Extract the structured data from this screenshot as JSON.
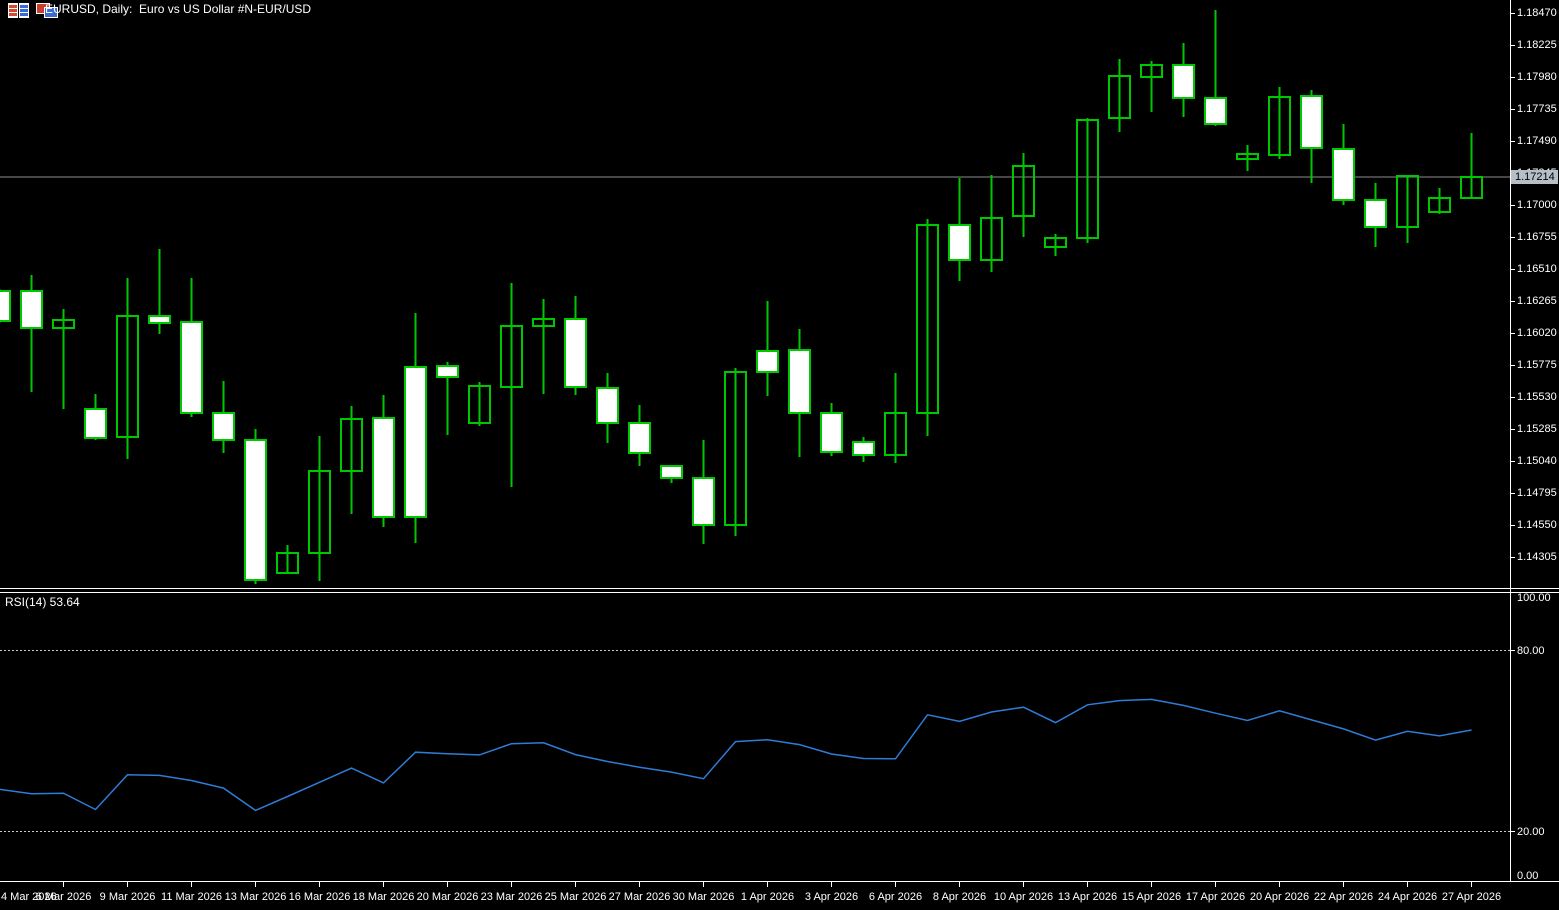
{
  "window": {
    "title": "EURUSD, Daily:  Euro vs US Dollar #N-EUR/USD",
    "icons": [
      "symbol-list-icon",
      "chart-window-icon"
    ]
  },
  "colors": {
    "background": "#000000",
    "candle_outline": "#00C800",
    "bear_body_fill": "#FFFFFF",
    "bull_body_fill": "none",
    "rsi_line": "#2E7CD6",
    "level_dashed": "#C8C8C8",
    "current_price_line": "#8C8C8C",
    "current_price_label_bg": "#B6BFC7",
    "axis_text": "#FFFFFF"
  },
  "chart_data": [
    {
      "type": "candlestick",
      "title": "EURUSD, Daily: Euro vs US Dollar #N-EUR/USD",
      "symbol": "EURUSD",
      "timeframe": "Daily",
      "ylim": [
        1.14305,
        1.1847
      ],
      "grid": false,
      "current_price": 1.17214,
      "dates": [
        "4 Mar 2026",
        "5 Mar 2026",
        "6 Mar 2026",
        "8 Mar 2026",
        "9 Mar 2026",
        "10 Mar 2026",
        "11 Mar 2026",
        "12 Mar 2026",
        "13 Mar 2026",
        "15 Mar 2026",
        "16 Mar 2026",
        "17 Mar 2026",
        "18 Mar 2026",
        "19 Mar 2026",
        "20 Mar 2026",
        "22 Mar 2026",
        "23 Mar 2026",
        "24 Mar 2026",
        "25 Mar 2026",
        "26 Mar 2026",
        "27 Mar 2026",
        "29 Mar 2026",
        "30 Mar 2026",
        "31 Mar 2026",
        "1 Apr 2026",
        "2 Apr 2026",
        "3 Apr 2026",
        "5 Apr 2026",
        "6 Apr 2026",
        "7 Apr 2026",
        "8 Apr 2026",
        "9 Apr 2026",
        "10 Apr 2026",
        "12 Apr 2026",
        "13 Apr 2026",
        "14 Apr 2026",
        "15 Apr 2026",
        "16 Apr 2026",
        "17 Apr 2026",
        "19 Apr 2026",
        "20 Apr 2026",
        "21 Apr 2026",
        "22 Apr 2026",
        "23 Apr 2026",
        "24 Apr 2026",
        "26 Apr 2026",
        "27 Apr 2026"
      ],
      "open": [
        1.16342,
        1.16342,
        1.16058,
        1.15438,
        1.15223,
        1.1615,
        1.16104,
        1.15408,
        1.15201,
        1.14182,
        1.14336,
        1.14963,
        1.15369,
        1.1576,
        1.15767,
        1.15331,
        1.15606,
        1.16073,
        1.16127,
        1.15599,
        1.15331,
        1.15002,
        1.1491,
        1.1455,
        1.15882,
        1.1589,
        1.15408,
        1.15185,
        1.15086,
        1.15408,
        1.16847,
        1.16579,
        1.16916,
        1.16678,
        1.16747,
        1.17666,
        1.1798,
        1.18072,
        1.17819,
        1.17352,
        1.17383,
        1.17834,
        1.17429,
        1.17038,
        1.16831,
        1.16946,
        1.17053
      ],
      "high": [
        1.16357,
        1.16464,
        1.16204,
        1.15553,
        1.16441,
        1.16663,
        1.16441,
        1.15652,
        1.15285,
        1.14397,
        1.15231,
        1.15461,
        1.15545,
        1.16173,
        1.15798,
        1.15645,
        1.16403,
        1.1628,
        1.16303,
        1.15714,
        1.15469,
        1.15002,
        1.15201,
        1.15752,
        1.16265,
        1.16051,
        1.15485,
        1.15223,
        1.15714,
        1.16893,
        1.17207,
        1.1723,
        1.17398,
        1.16778,
        1.17666,
        1.18118,
        1.18103,
        1.1824,
        1.18493,
        1.17459,
        1.17903,
        1.1788,
        1.1762,
        1.17168,
        1.17222,
        1.1713,
        1.17551
      ],
      "low": [
        1.16097,
        1.15568,
        1.15438,
        1.15201,
        1.15055,
        1.16012,
        1.15377,
        1.15101,
        1.14098,
        1.14175,
        1.14121,
        1.14634,
        1.14534,
        1.14412,
        1.15239,
        1.15308,
        1.1484,
        1.15553,
        1.15545,
        1.15178,
        1.15002,
        1.14872,
        1.14405,
        1.14466,
        1.15538,
        1.15071,
        1.15078,
        1.15032,
        1.15025,
        1.15231,
        1.16418,
        1.16487,
        1.16755,
        1.16609,
        1.16709,
        1.17559,
        1.17712,
        1.17674,
        1.17605,
        1.1726,
        1.17352,
        1.17168,
        1.17,
        1.16678,
        1.16709,
        1.16931,
        1.17053
      ],
      "close": [
        1.16112,
        1.16058,
        1.1612,
        1.15216,
        1.1615,
        1.16097,
        1.15408,
        1.15201,
        1.14129,
        1.14336,
        1.14963,
        1.15361,
        1.14611,
        1.14611,
        1.15683,
        1.15614,
        1.16073,
        1.16127,
        1.15606,
        1.15331,
        1.15101,
        1.1491,
        1.1455,
        1.15722,
        1.15722,
        1.15408,
        1.15109,
        1.15086,
        1.15408,
        1.16847,
        1.16579,
        1.169,
        1.17299,
        1.16747,
        1.17651,
        1.17988,
        1.18072,
        1.17819,
        1.1762,
        1.1739,
        1.17827,
        1.17436,
        1.17038,
        1.16831,
        1.17222,
        1.17053,
        1.17214
      ]
    },
    {
      "type": "line",
      "name": "RSI(14)",
      "current_value": 53.64,
      "range": [
        0,
        100
      ],
      "levels": [
        80,
        20
      ],
      "values": [
        34.0,
        32.5,
        32.7,
        27.3,
        38.8,
        38.6,
        36.9,
        34.4,
        27.0,
        31.6,
        36.3,
        41.0,
        36.1,
        46.3,
        45.8,
        45.4,
        49.1,
        49.4,
        45.5,
        43.2,
        41.3,
        39.7,
        37.5,
        49.8,
        50.4,
        48.8,
        45.7,
        44.2,
        44.1,
        58.7,
        56.5,
        59.6,
        61.2,
        56.1,
        62.0,
        63.4,
        63.8,
        61.8,
        59.2,
        56.8,
        60.0,
        57.0,
        54.0,
        50.3,
        53.2,
        51.7,
        53.64
      ]
    }
  ],
  "price_axis": {
    "labels": [
      "1.18470",
      "1.18225",
      "1.17980",
      "1.17735",
      "1.17490",
      "1.17245",
      "1.17000",
      "1.16755",
      "1.16510",
      "1.16265",
      "1.16020",
      "1.15775",
      "1.15530",
      "1.15285",
      "1.15040",
      "1.14795",
      "1.14550",
      "1.14305"
    ],
    "current_price": "1.17214"
  },
  "rsi_axis": {
    "labels": [
      "100.00",
      "80.00",
      "20.00",
      "0.00"
    ],
    "values": [
      100,
      80,
      20,
      0
    ]
  },
  "date_axis": {
    "labels": [
      "4 Mar 2026",
      "6 Mar 2026",
      "9 Mar 2026",
      "11 Mar 2026",
      "13 Mar 2026",
      "16 Mar 2026",
      "18 Mar 2026",
      "20 Mar 2026",
      "23 Mar 2026",
      "25 Mar 2026",
      "27 Mar 2026",
      "30 Mar 2026",
      "1 Apr 2026",
      "3 Apr 2026",
      "6 Apr 2026",
      "8 Apr 2026",
      "10 Apr 2026",
      "13 Apr 2026",
      "15 Apr 2026",
      "17 Apr 2026",
      "20 Apr 2026",
      "22 Apr 2026",
      "24 Apr 2026",
      "27 Apr 2026"
    ]
  },
  "rsi_panel": {
    "label": "RSI(14) 53.64"
  }
}
